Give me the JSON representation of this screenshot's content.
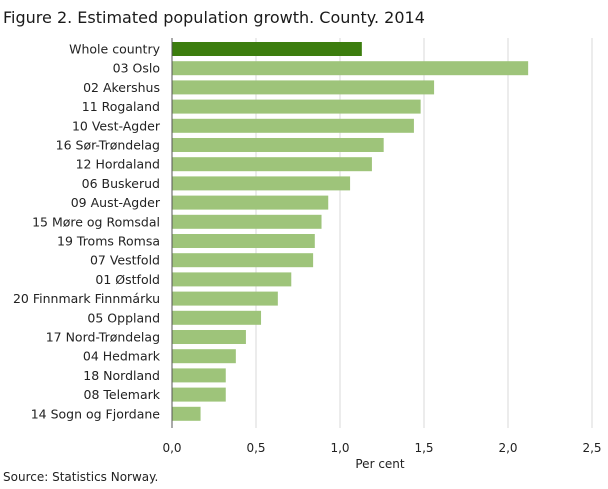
{
  "title": "Figure 2. Estimated population growth. County. 2014",
  "source": "Source: Statistics Norway.",
  "colors": {
    "highlight_bar": "#3c7d0e",
    "bar": "#9ec47a",
    "grid": "#d9d9d9",
    "axis": "#555555"
  },
  "chart_data": {
    "type": "bar",
    "orientation": "horizontal",
    "categories": [
      "Whole country",
      "03 Oslo",
      "02 Akershus",
      "11 Rogaland",
      "10 Vest-Agder",
      "16 Sør-Trøndelag",
      "12 Hordaland",
      "06 Buskerud",
      "09 Aust-Agder",
      "15 Møre og Romsdal",
      "19 Troms Romsa",
      "07 Vestfold",
      "01 Østfold",
      "20 Finnmark Finnmárku",
      "05 Oppland",
      "17 Nord-Trøndelag",
      "04 Hedmark",
      "18 Nordland",
      "08 Telemark",
      "14 Sogn og Fjordane"
    ],
    "values": [
      1.13,
      2.12,
      1.56,
      1.48,
      1.44,
      1.26,
      1.19,
      1.06,
      0.93,
      0.89,
      0.85,
      0.84,
      0.71,
      0.63,
      0.53,
      0.44,
      0.38,
      0.32,
      0.32,
      0.17
    ],
    "highlight_index": 0,
    "xlabel": "Per cent",
    "xlim": [
      0,
      2.5
    ],
    "xticks": [
      0,
      0.5,
      1.0,
      1.5,
      2.0,
      2.5
    ],
    "xtick_labels": [
      "0,0",
      "0,5",
      "1,0",
      "1,5",
      "2,0",
      "2,5"
    ],
    "grid": true,
    "legend": "none"
  }
}
